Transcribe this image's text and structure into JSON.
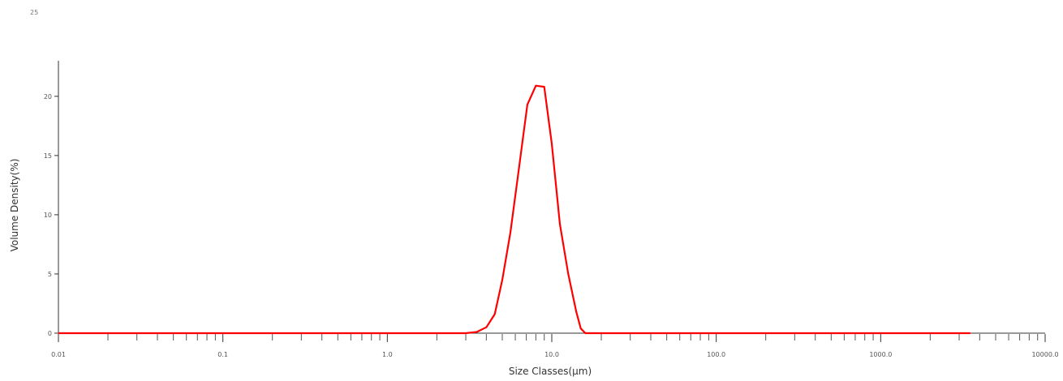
{
  "chart_data": {
    "type": "line",
    "title": "",
    "top_label": "25",
    "xlabel": "Size Classes(μm)",
    "ylabel": "Volume Density(%)",
    "x_scale": "log",
    "xlim": [
      0.01,
      10000
    ],
    "ylim": [
      0,
      23
    ],
    "x_tick_values": [
      0.01,
      0.1,
      1.0,
      10.0,
      100.0,
      1000.0,
      10000.0
    ],
    "x_tick_labels": [
      "0.01",
      "0.1",
      "1.0",
      "10.0",
      "100.0",
      "1000.0",
      "10000.0"
    ],
    "y_tick_values": [
      0,
      5,
      10,
      15,
      20
    ],
    "y_tick_labels": [
      "0",
      "5",
      "10",
      "15",
      "20"
    ],
    "grid": false,
    "legend": "none",
    "series_color": "#ff0000",
    "series": [
      {
        "x": [
          0.01,
          1.0,
          3.0,
          3.5,
          4.0,
          4.5,
          5.0,
          5.6,
          6.3,
          7.1,
          8.0,
          9.0,
          10.0,
          11.2,
          12.6,
          14.1,
          15.0,
          16.0,
          20.0,
          100.0,
          1000.0,
          3500.0
        ],
        "y": [
          0,
          0,
          0,
          0.1,
          0.5,
          1.6,
          4.5,
          8.5,
          13.8,
          19.3,
          20.9,
          20.8,
          16.0,
          9.2,
          5.0,
          1.8,
          0.4,
          0,
          0,
          0,
          0,
          0
        ]
      }
    ]
  }
}
